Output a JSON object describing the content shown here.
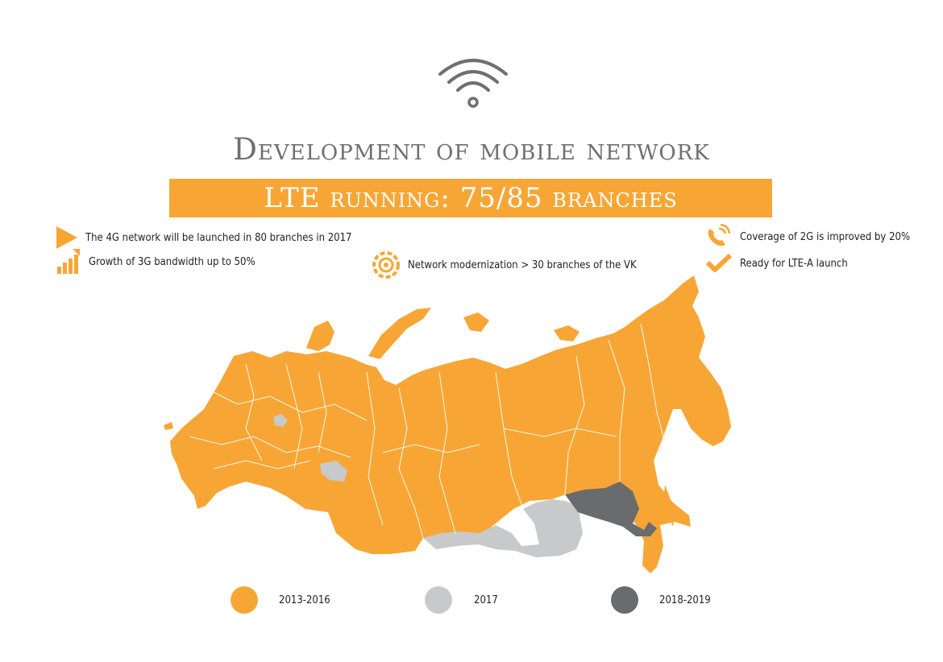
{
  "title": "Development of mobile network",
  "banner": "LTE running: 75/85 branches",
  "features": {
    "f1": "The 4G network will be launched in 80 branches in 2017",
    "f2": "Growth of 3G bandwidth up to 50%",
    "f3": "Network modernization > 30 branches of the VK",
    "f4": "Coverage of 2G is improved by 20%",
    "f5": "Ready for LTE-A launch"
  },
  "legend": [
    {
      "label": "2013-2016",
      "color": "#f7a636"
    },
    {
      "label": "2017",
      "color": "#c8c9cb"
    },
    {
      "label": "2018-2019",
      "color": "#6a6b6d"
    }
  ],
  "colors": {
    "accent": "#f7a636",
    "grey_light": "#c8c9cb",
    "grey_dark": "#6a6b6d",
    "title": "#6f6f6f"
  },
  "icons": [
    "wifi-icon",
    "play-icon",
    "bar-growth-icon",
    "gear-icon",
    "phone-icon",
    "check-icon"
  ]
}
